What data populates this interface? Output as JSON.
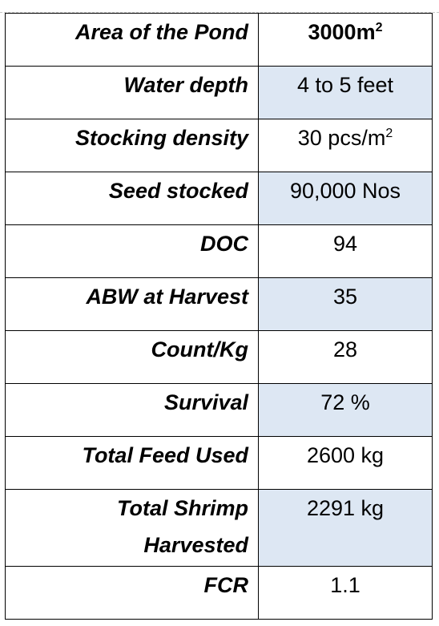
{
  "rows": [
    {
      "label": "Area of the Pond",
      "value": "3000m",
      "sup": "2",
      "shaded": false,
      "bold": true
    },
    {
      "label": "Water depth",
      "value": "4 to 5 feet",
      "shaded": true
    },
    {
      "label": "Stocking density",
      "value": "30 pcs/m",
      "sup": "2",
      "shaded": false
    },
    {
      "label": "Seed stocked",
      "value": "90,000 Nos",
      "shaded": true
    },
    {
      "label": "DOC",
      "value": "94",
      "shaded": false
    },
    {
      "label": "ABW at Harvest",
      "value": "35",
      "shaded": true
    },
    {
      "label": "Count/Kg",
      "value": "28",
      "shaded": false
    },
    {
      "label": "Survival",
      "value": "72 %",
      "shaded": true
    },
    {
      "label": "Total Feed Used",
      "value": "2600 kg",
      "shaded": false
    },
    {
      "label": "Total Shrimp Harvested",
      "value": "2291 kg",
      "shaded": true
    },
    {
      "label": "FCR",
      "value": "1.1",
      "shaded": false
    }
  ],
  "colors": {
    "shade": "#dde7f3",
    "border": "#000000"
  }
}
